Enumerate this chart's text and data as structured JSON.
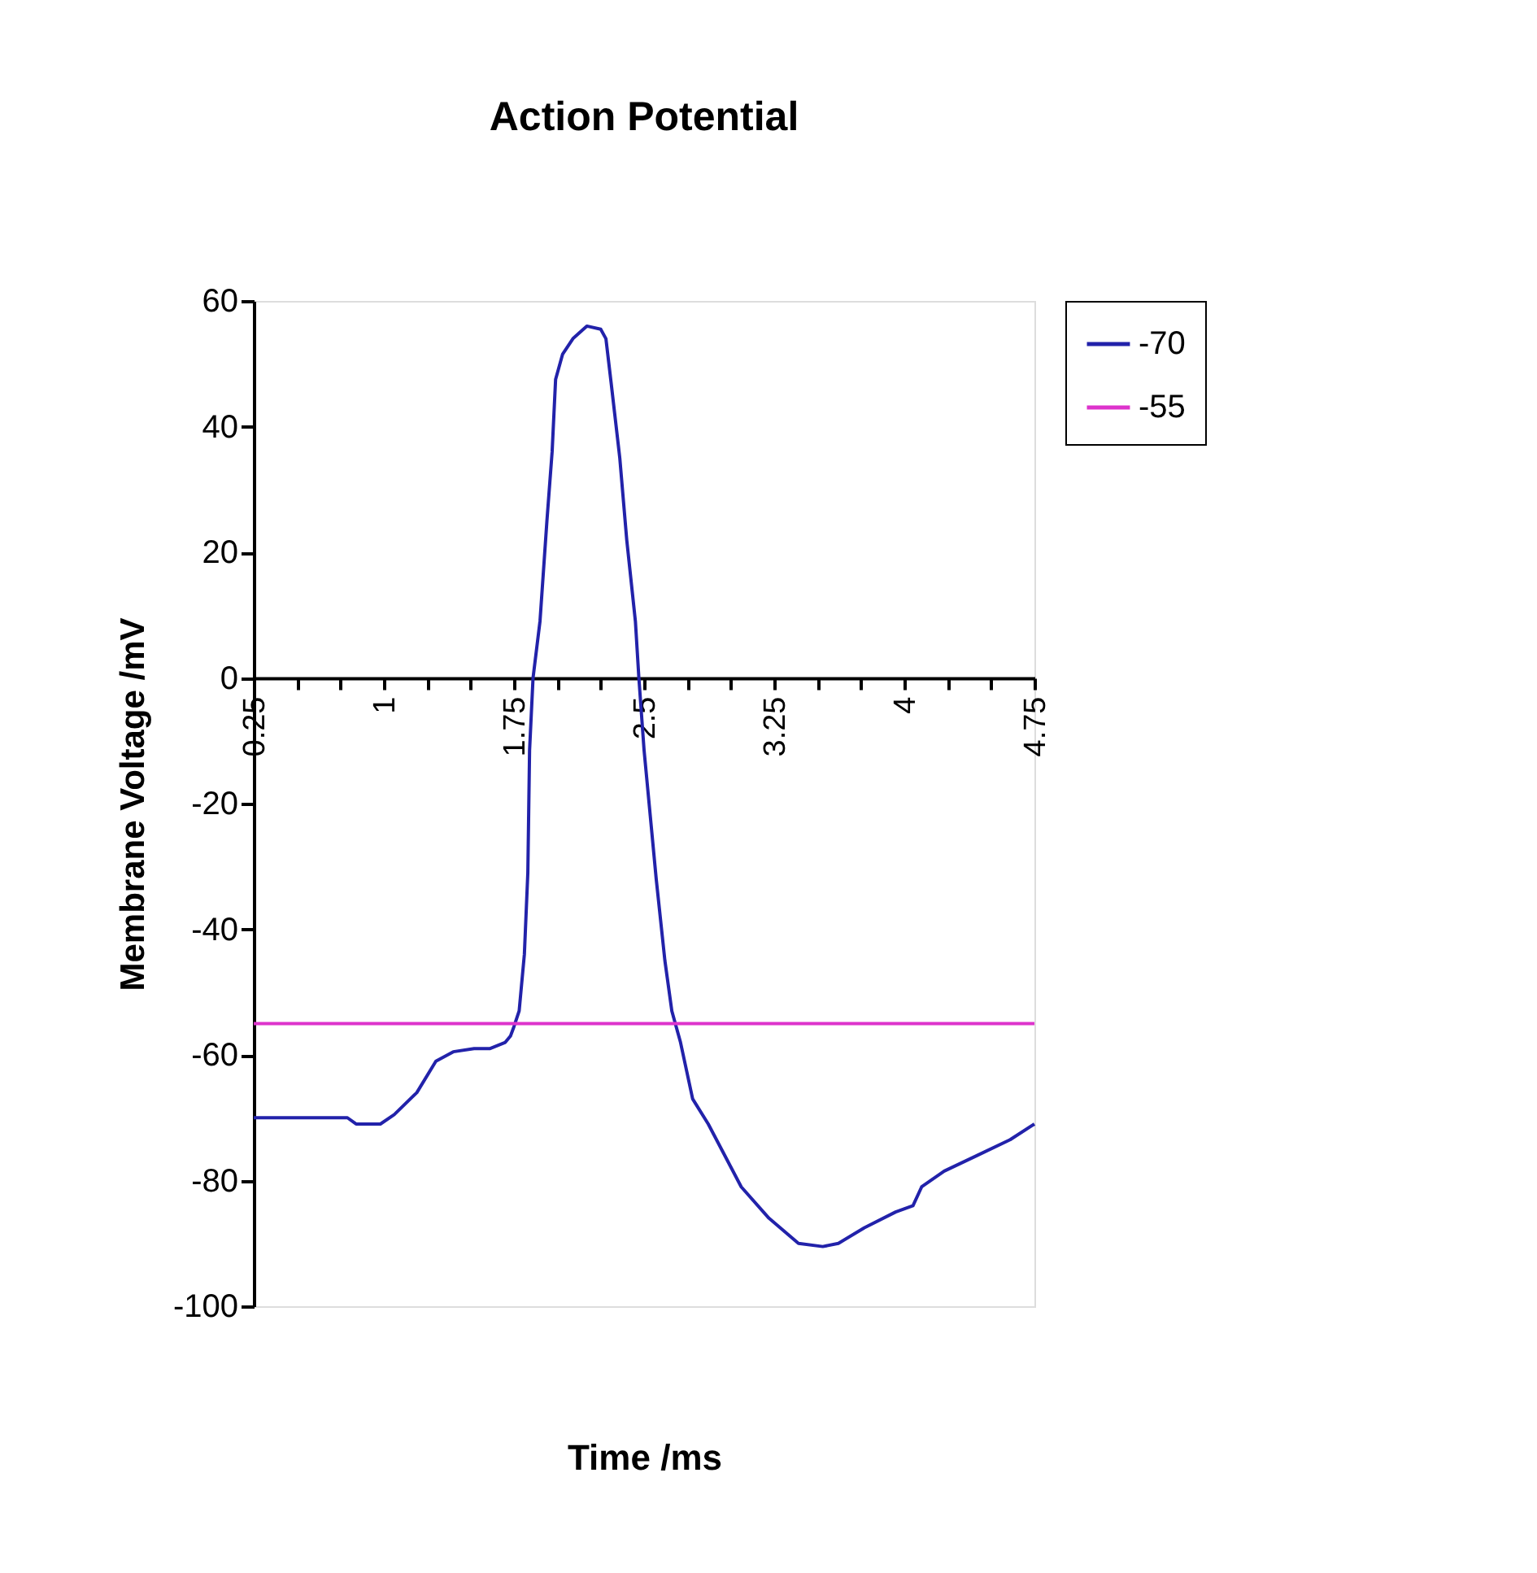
{
  "chart_data": {
    "type": "line",
    "title": "Action Potential",
    "xlabel": "Time /ms",
    "ylabel": "Membrane Voltage /mV",
    "xlim": [
      0.25,
      4.75
    ],
    "xticks": [
      0.25,
      {
        "value": 0.5,
        "label": null
      },
      {
        "value": 0.75,
        "label": null
      },
      1,
      {
        "value": 1.25,
        "label": null
      },
      {
        "value": 1.5,
        "label": null
      },
      1.75,
      {
        "value": 2.0,
        "label": null
      },
      {
        "value": 2.25,
        "label": null
      },
      2.5,
      {
        "value": 2.75,
        "label": null
      },
      {
        "value": 3.0,
        "label": null
      },
      3.25,
      {
        "value": 3.5,
        "label": null
      },
      {
        "value": 3.75,
        "label": null
      },
      4,
      {
        "value": 4.25,
        "label": null
      },
      {
        "value": 4.5,
        "label": null
      },
      4.75
    ],
    "ylim": [
      -100,
      60
    ],
    "yticks": [
      -100,
      -80,
      -60,
      -40,
      -20,
      0,
      20,
      40,
      60
    ],
    "grid": false,
    "legend": "right",
    "marker": "none",
    "line_style": "solid",
    "series": [
      {
        "name": "-70",
        "color": "#2222aa",
        "x": [
          0.25,
          0.79,
          0.84,
          0.98,
          1.06,
          1.19,
          1.3,
          1.4,
          1.52,
          1.61,
          1.7,
          1.73,
          1.75,
          1.78,
          1.81,
          1.83,
          1.84,
          1.86,
          1.9,
          1.94,
          1.97,
          1.99,
          2.03,
          2.09,
          2.17,
          2.25,
          2.28,
          2.31,
          2.36,
          2.4,
          2.45,
          2.47,
          2.5,
          2.57,
          2.62,
          2.66,
          2.71,
          2.78,
          2.87,
          3.06,
          3.22,
          3.39,
          3.53,
          3.62,
          3.77,
          3.95,
          4.05,
          4.1,
          4.23,
          4.42,
          4.61,
          4.75
        ],
        "values": [
          -70,
          -70,
          -71,
          -71,
          -69.5,
          -66,
          -61,
          -59.5,
          -59,
          -59,
          -58,
          -57,
          -55.5,
          -53,
          -44,
          -31,
          -11.5,
          0,
          9,
          25,
          36,
          47.5,
          51.5,
          54,
          56,
          55.5,
          54,
          47,
          35,
          22,
          9,
          0,
          -11.5,
          -32,
          -45,
          -53,
          -58,
          -67,
          -71,
          -81,
          -86,
          -90,
          -90.5,
          -90,
          -87.5,
          -85,
          -84,
          -81,
          -78.5,
          -76,
          -73.5,
          -71
        ]
      },
      {
        "name": "-55",
        "color": "#dd33cc",
        "x": [
          0.25,
          4.75
        ],
        "values": [
          -55,
          -55
        ]
      }
    ]
  }
}
